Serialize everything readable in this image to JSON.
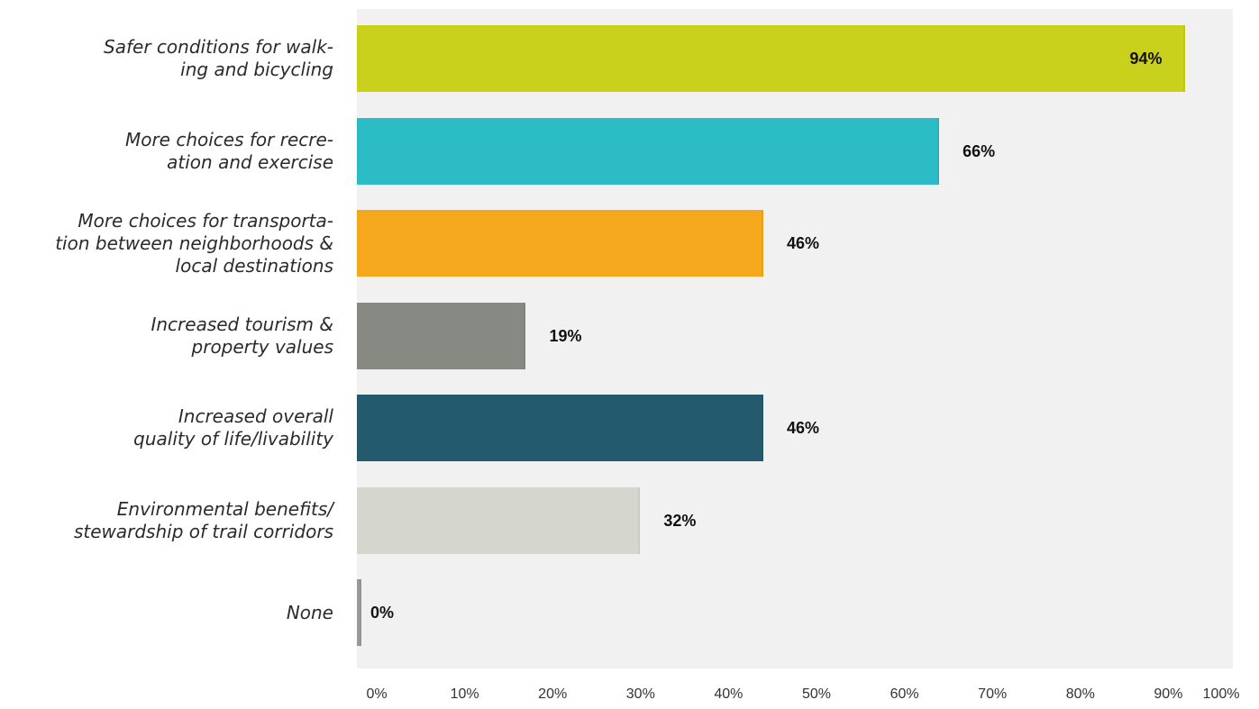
{
  "chart_data": {
    "type": "bar",
    "orientation": "horizontal",
    "title": "",
    "categories": [
      "Safer conditions for walk-\ning and bicycling",
      "More choices for recre-\nation and exercise",
      "More choices for transporta-\ntion between neighborhoods &\nlocal destinations",
      "Increased tourism &\nproperty values",
      "Increased overall\nquality of life/livability",
      "Environmental benefits/\nstewardship of trail corridors",
      "None"
    ],
    "values": [
      94,
      66,
      46,
      19,
      46,
      32,
      0
    ],
    "value_labels": [
      "94%",
      "66%",
      "46%",
      "19%",
      "46%",
      "32%",
      "0%"
    ],
    "colors": [
      "#c9d11c",
      "#2bbcc6",
      "#f5a81c",
      "#878a82",
      "#245a6d",
      "#d5d7ce",
      "#9a9a9a"
    ],
    "xlim": [
      0,
      100
    ],
    "x_ticks": [
      "0%",
      "10%",
      "20%",
      "30%",
      "40%",
      "50%",
      "60%",
      "70%",
      "80%",
      "90%",
      "100%"
    ],
    "grid": false,
    "legend": "none"
  }
}
